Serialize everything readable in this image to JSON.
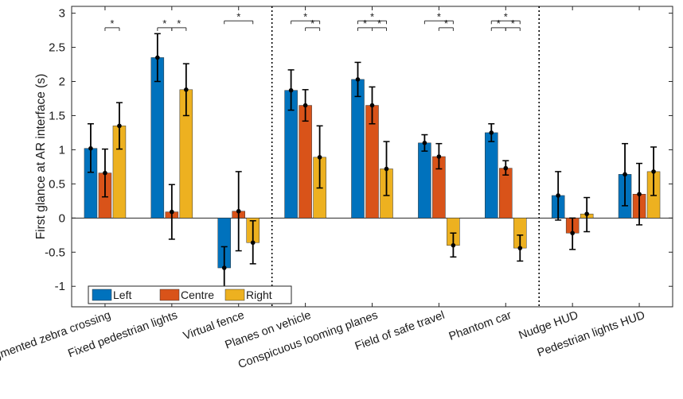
{
  "chart_data": {
    "type": "bar",
    "title": "",
    "xlabel": "",
    "ylabel": "First glance at AR interface (s)",
    "ylim": [
      -1.3,
      3.1
    ],
    "yticks": [
      "-1",
      "-0.5",
      "0",
      "0.5",
      "1",
      "1.5",
      "2",
      "2.5",
      "3"
    ],
    "categories": [
      "Augmented zebra crossing",
      "Fixed pedestrian lights",
      "Virtual fence",
      "Planes on vehicle",
      "Conspicuous looming planes",
      "Field of safe travel",
      "Phantom car",
      "Nudge HUD",
      "Pedestrian lights HUD"
    ],
    "series": [
      {
        "name": "Left",
        "color": "#0072BD",
        "values": [
          1.02,
          2.35,
          -0.73,
          1.87,
          2.03,
          1.1,
          1.25,
          0.33,
          0.64
        ],
        "err_low": [
          0.67,
          2.0,
          -1.05,
          1.58,
          1.78,
          0.98,
          1.12,
          -0.03,
          0.18
        ],
        "err_high": [
          1.38,
          2.7,
          -0.42,
          2.17,
          2.28,
          1.22,
          1.38,
          0.68,
          1.09
        ]
      },
      {
        "name": "Centre",
        "color": "#D95319",
        "values": [
          0.66,
          0.09,
          0.1,
          1.65,
          1.65,
          0.9,
          0.73,
          -0.22,
          0.35
        ],
        "err_low": [
          0.31,
          -0.31,
          -0.48,
          1.42,
          1.38,
          0.72,
          0.63,
          -0.46,
          -0.1
        ],
        "err_high": [
          1.01,
          0.49,
          0.68,
          1.88,
          1.92,
          1.09,
          0.84,
          0.0,
          0.8
        ]
      },
      {
        "name": "Right",
        "color": "#EDB120",
        "values": [
          1.35,
          1.88,
          -0.36,
          0.89,
          0.72,
          -0.4,
          -0.44,
          0.06,
          0.68
        ],
        "err_low": [
          1.01,
          1.5,
          -0.67,
          0.44,
          0.33,
          -0.57,
          -0.63,
          -0.2,
          0.33
        ],
        "err_high": [
          1.69,
          2.26,
          -0.04,
          1.35,
          1.12,
          -0.22,
          -0.25,
          0.3,
          1.04
        ]
      }
    ],
    "group_separators_after": [
      2,
      6
    ],
    "significance": [
      {
        "category": 0,
        "from": 1,
        "to": 2,
        "y": 2.95,
        "label": "*"
      },
      {
        "category": 1,
        "from": 0,
        "to": 1,
        "y": 2.95,
        "label": "*"
      },
      {
        "category": 1,
        "from": 1,
        "to": 2,
        "y": 2.95,
        "label": "*"
      },
      {
        "category": 2,
        "from": 0,
        "to": 2,
        "y": 3.05,
        "label": "*"
      },
      {
        "category": 3,
        "from": 0,
        "to": 2,
        "y": 3.05,
        "label": "*"
      },
      {
        "category": 3,
        "from": 1,
        "to": 2,
        "y": 2.95,
        "label": "*"
      },
      {
        "category": 4,
        "from": 0,
        "to": 2,
        "y": 3.05,
        "label": "*"
      },
      {
        "category": 4,
        "from": 0,
        "to": 1,
        "y": 2.95,
        "label": "*"
      },
      {
        "category": 4,
        "from": 1,
        "to": 2,
        "y": 2.95,
        "label": "*"
      },
      {
        "category": 5,
        "from": 0,
        "to": 2,
        "y": 3.05,
        "label": "*"
      },
      {
        "category": 5,
        "from": 1,
        "to": 2,
        "y": 2.95,
        "label": "*"
      },
      {
        "category": 6,
        "from": 0,
        "to": 2,
        "y": 3.05,
        "label": "*"
      },
      {
        "category": 6,
        "from": 0,
        "to": 1,
        "y": 2.95,
        "label": "*"
      },
      {
        "category": 6,
        "from": 1,
        "to": 2,
        "y": 2.95,
        "label": "*"
      }
    ],
    "legend": {
      "position": "bottom-left",
      "entries": [
        "Left",
        "Centre",
        "Right"
      ]
    },
    "grid": false
  }
}
